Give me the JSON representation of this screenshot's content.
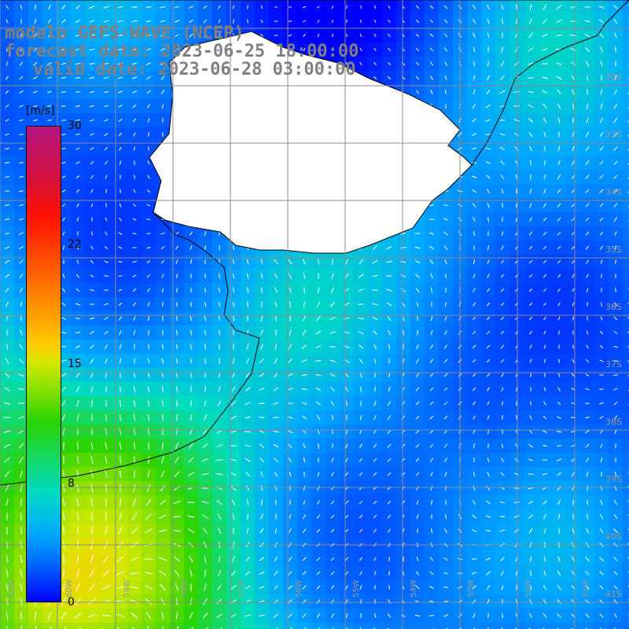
{
  "title": {
    "model": "modelo GEFS-WAVE (NCEP)",
    "forecast": "forecast date: 2023-06-25 18:00:00",
    "valid": "valid date: 2023-06-28 03:00:00"
  },
  "colorbar": {
    "unit": "[m/s]",
    "ticks": [
      "30",
      "22",
      "15",
      "8",
      "0"
    ],
    "min": 0,
    "max": 30
  },
  "map": {
    "lat_labels": [
      "32S",
      "33S",
      "34S",
      "35S",
      "36S",
      "37S",
      "38S",
      "39S",
      "40S",
      "41S"
    ],
    "lon_labels": [
      "61W",
      "60W",
      "59W",
      "58W",
      "57W",
      "56W",
      "55W",
      "54W",
      "53W",
      "52W",
      "51W"
    ],
    "land_color": "#ffffff",
    "grid_color": "#8c8c8c",
    "vector_color": "#ffffff"
  }
}
